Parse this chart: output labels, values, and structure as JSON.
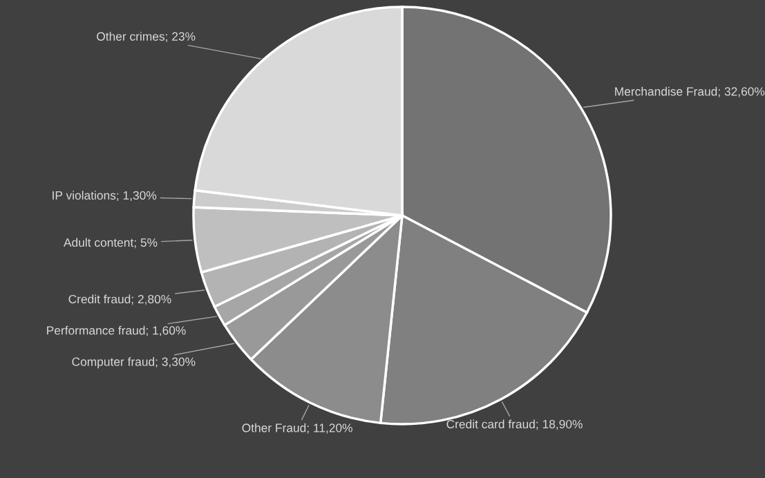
{
  "chart_data": {
    "type": "pie",
    "categories": [
      "Merchandise Fraud",
      "Credit card fraud",
      "Other Fraud",
      "Computer fraud",
      "Performance fraud",
      "Credit fraud",
      "Adult content",
      "IP violations",
      "Other crimes"
    ],
    "values": [
      32.6,
      18.9,
      11.2,
      3.3,
      1.6,
      2.8,
      5,
      1.3,
      23
    ],
    "value_labels": [
      "32,60%",
      "18,90%",
      "11,20%",
      "3,30%",
      "1,60%",
      "2,80%",
      "5%",
      "1,30%",
      "23%"
    ],
    "colors": [
      "#737373",
      "#808080",
      "#8c8c8c",
      "#999999",
      "#a6a6a6",
      "#b3b3b3",
      "#bfbfbf",
      "#cccccc",
      "#d9d9d9"
    ],
    "legend": false
  }
}
